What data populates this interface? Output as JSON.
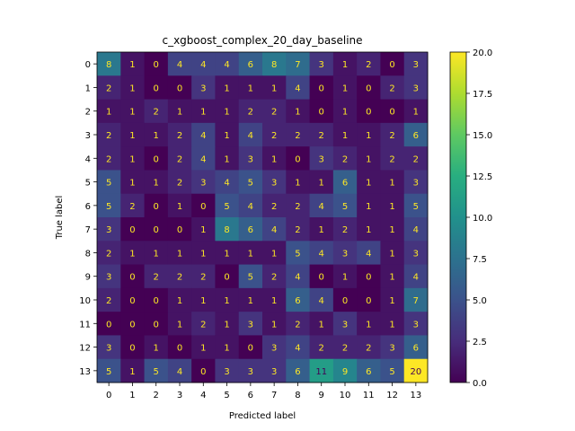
{
  "chart_data": {
    "type": "heatmap",
    "title": "c_xgboost_complex_20_day_baseline",
    "xlabel": "Predicted label",
    "ylabel": "True label",
    "x_tick_labels": [
      "0",
      "1",
      "2",
      "3",
      "4",
      "5",
      "6",
      "7",
      "8",
      "9",
      "10",
      "11",
      "12",
      "13"
    ],
    "y_tick_labels": [
      "0",
      "1",
      "2",
      "3",
      "4",
      "5",
      "6",
      "7",
      "8",
      "9",
      "10",
      "11",
      "12",
      "13"
    ],
    "matrix": [
      [
        8,
        1,
        0,
        4,
        4,
        4,
        6,
        8,
        7,
        3,
        1,
        2,
        0,
        3
      ],
      [
        2,
        1,
        0,
        0,
        3,
        1,
        1,
        1,
        4,
        0,
        1,
        0,
        2,
        3
      ],
      [
        1,
        1,
        2,
        1,
        1,
        1,
        2,
        2,
        1,
        0,
        1,
        0,
        0,
        1
      ],
      [
        2,
        1,
        1,
        2,
        4,
        1,
        4,
        2,
        2,
        2,
        1,
        1,
        2,
        6
      ],
      [
        2,
        1,
        0,
        2,
        4,
        1,
        3,
        1,
        0,
        3,
        2,
        1,
        2,
        2
      ],
      [
        5,
        1,
        1,
        2,
        3,
        4,
        5,
        3,
        1,
        1,
        6,
        1,
        1,
        3
      ],
      [
        5,
        2,
        0,
        1,
        0,
        5,
        4,
        2,
        2,
        4,
        5,
        1,
        1,
        5
      ],
      [
        3,
        0,
        0,
        0,
        1,
        8,
        6,
        4,
        2,
        1,
        2,
        1,
        1,
        4
      ],
      [
        2,
        1,
        1,
        1,
        1,
        1,
        1,
        1,
        5,
        4,
        3,
        4,
        1,
        3
      ],
      [
        3,
        0,
        2,
        2,
        2,
        0,
        5,
        2,
        4,
        0,
        1,
        0,
        1,
        4
      ],
      [
        2,
        0,
        0,
        1,
        1,
        1,
        1,
        1,
        6,
        4,
        0,
        0,
        1,
        7
      ],
      [
        0,
        0,
        0,
        1,
        2,
        1,
        3,
        1,
        2,
        1,
        3,
        1,
        1,
        3
      ],
      [
        3,
        0,
        1,
        0,
        1,
        1,
        0,
        3,
        4,
        2,
        2,
        2,
        3,
        6
      ],
      [
        5,
        1,
        5,
        4,
        0,
        3,
        3,
        3,
        6,
        11,
        9,
        6,
        5,
        20
      ]
    ],
    "colormap": "viridis",
    "vmin": 0,
    "vmax": 20,
    "colorbar_ticks": [
      "0.0",
      "2.5",
      "5.0",
      "7.5",
      "10.0",
      "12.5",
      "15.0",
      "17.5",
      "20.0"
    ],
    "colorbar_tick_values": [
      0,
      2.5,
      5,
      7.5,
      10,
      12.5,
      15,
      17.5,
      20
    ],
    "colors": {
      "label_on_dark": "#fde725",
      "label_on_light": "#440154"
    }
  }
}
